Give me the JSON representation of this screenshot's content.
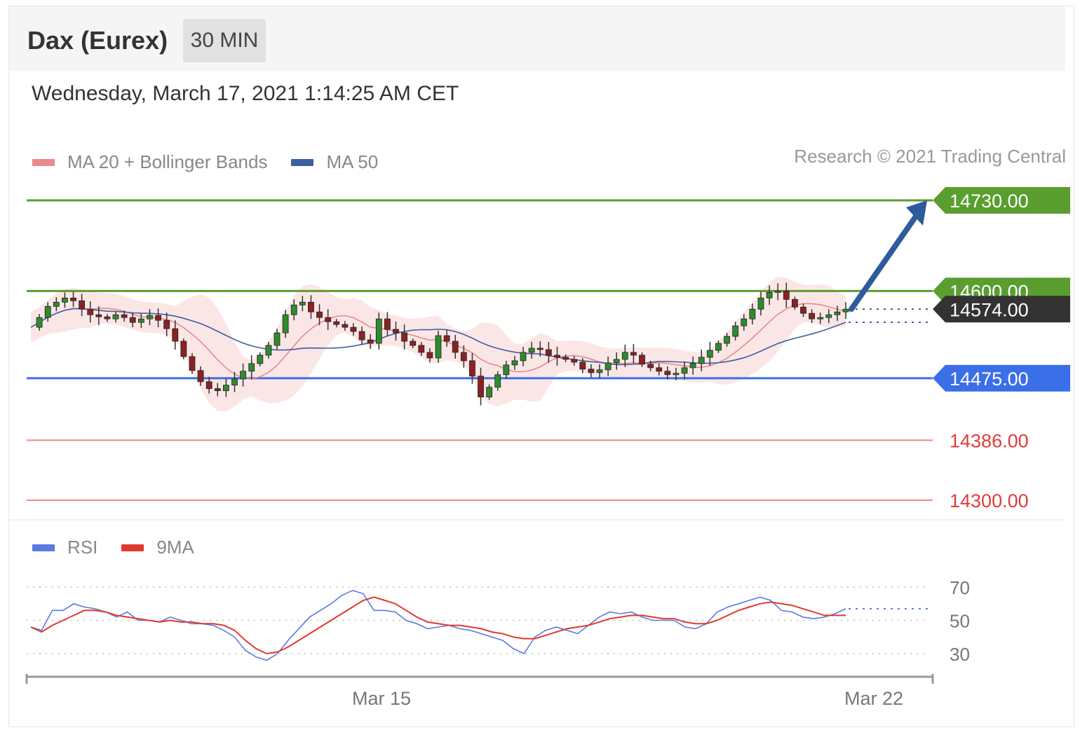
{
  "header": {
    "title": "Dax (Eurex)",
    "timeframe": "30 MIN"
  },
  "timestamp": "Wednesday, March 17, 2021 1:14:25 AM CET",
  "credit": "Research © 2021 Trading Central",
  "colors": {
    "resistance": "#5a9e2f",
    "pivot": "#3a6fe8",
    "support": "#e23b3b",
    "last_price": "#333333",
    "ma20": "#e88a8a",
    "ma50": "#3d5f9f",
    "bands_fill": "#fbe3e3",
    "rsi": "#5b7be0",
    "rsi_ma": "#e03a2f",
    "arrow": "#2f5a9c"
  },
  "legend_main": [
    {
      "label": "MA 20 + Bollinger Bands",
      "color": "#e88a8a"
    },
    {
      "label": "MA 50",
      "color": "#3d5f9f"
    }
  ],
  "legend_rsi": [
    {
      "label": "RSI",
      "color": "#5b7be0"
    },
    {
      "label": "9MA",
      "color": "#e03a2f"
    }
  ],
  "chart_data": [
    {
      "type": "candlestick",
      "title": "Dax (Eurex) 30 MIN",
      "x_tick_labels": [
        "Mar 15",
        "Mar 22"
      ],
      "ylim": [
        14290,
        14760
      ],
      "levels": [
        {
          "value": 14730,
          "label": "14730.00",
          "kind": "resistance"
        },
        {
          "value": 14600,
          "label": "14600.00",
          "kind": "resistance"
        },
        {
          "value": 14574,
          "label": "14574.00",
          "kind": "last"
        },
        {
          "value": 14475,
          "label": "14475.00",
          "kind": "pivot"
        },
        {
          "value": 14386,
          "label": "14386.00",
          "kind": "support"
        },
        {
          "value": 14300,
          "label": "14300.00",
          "kind": "support"
        }
      ],
      "target_arrow": {
        "from": 14574,
        "to": 14730
      },
      "price_path": [
        14548,
        14562,
        14578,
        14584,
        14590,
        14586,
        14574,
        14566,
        14563,
        14560,
        14566,
        14562,
        14555,
        14560,
        14565,
        14558,
        14546,
        14528,
        14506,
        14486,
        14470,
        14460,
        14457,
        14465,
        14474,
        14485,
        14496,
        14508,
        14522,
        14540,
        14566,
        14580,
        14584,
        14570,
        14562,
        14556,
        14552,
        14548,
        14542,
        14530,
        14525,
        14560,
        14545,
        14540,
        14528,
        14522,
        14512,
        14504,
        14536,
        14528,
        14512,
        14500,
        14478,
        14448,
        14462,
        14480,
        14494,
        14500,
        14512,
        14518,
        14516,
        14508,
        14505,
        14502,
        14498,
        14488,
        14483,
        14487,
        14497,
        14502,
        14512,
        14508,
        14495,
        14490,
        14485,
        14480,
        14482,
        14490,
        14496,
        14505,
        14515,
        14525,
        14535,
        14550,
        14560,
        14574,
        14590,
        14598,
        14600,
        14588,
        14577,
        14568,
        14560,
        14562,
        14566,
        14570,
        14574
      ]
    },
    {
      "type": "line",
      "title": "RSI",
      "ylim": [
        20,
        80
      ],
      "y_ticks": [
        30,
        50,
        70
      ],
      "series": [
        {
          "name": "RSI",
          "values": [
            46,
            44,
            56,
            56,
            60,
            58,
            57,
            55,
            52,
            55,
            50,
            50,
            49,
            52,
            50,
            48,
            48,
            47,
            44,
            40,
            32,
            28,
            26,
            30,
            38,
            45,
            52,
            56,
            60,
            65,
            68,
            66,
            56,
            56,
            55,
            50,
            48,
            45,
            46,
            47,
            45,
            44,
            42,
            40,
            38,
            33,
            30,
            40,
            44,
            46,
            44,
            42,
            47,
            52,
            55,
            54,
            55,
            52,
            50,
            50,
            50,
            46,
            45,
            48,
            55,
            58,
            60,
            62,
            64,
            62,
            56,
            55,
            52,
            51,
            52,
            54,
            57
          ]
        },
        {
          "name": "9MA",
          "values": [
            46,
            43,
            47,
            50,
            53,
            56,
            56,
            55,
            53,
            52,
            51,
            50,
            49,
            50,
            49,
            49,
            48,
            48,
            47,
            44,
            38,
            33,
            30,
            31,
            34,
            38,
            42,
            46,
            50,
            54,
            58,
            62,
            64,
            62,
            60,
            56,
            52,
            49,
            48,
            47,
            47,
            46,
            45,
            43,
            42,
            40,
            39,
            39,
            41,
            43,
            45,
            46,
            47,
            49,
            51,
            52,
            53,
            53,
            52,
            51,
            51,
            49,
            48,
            48,
            50,
            53,
            56,
            58,
            60,
            61,
            60,
            59,
            57,
            55,
            53,
            53,
            53
          ]
        }
      ]
    }
  ]
}
